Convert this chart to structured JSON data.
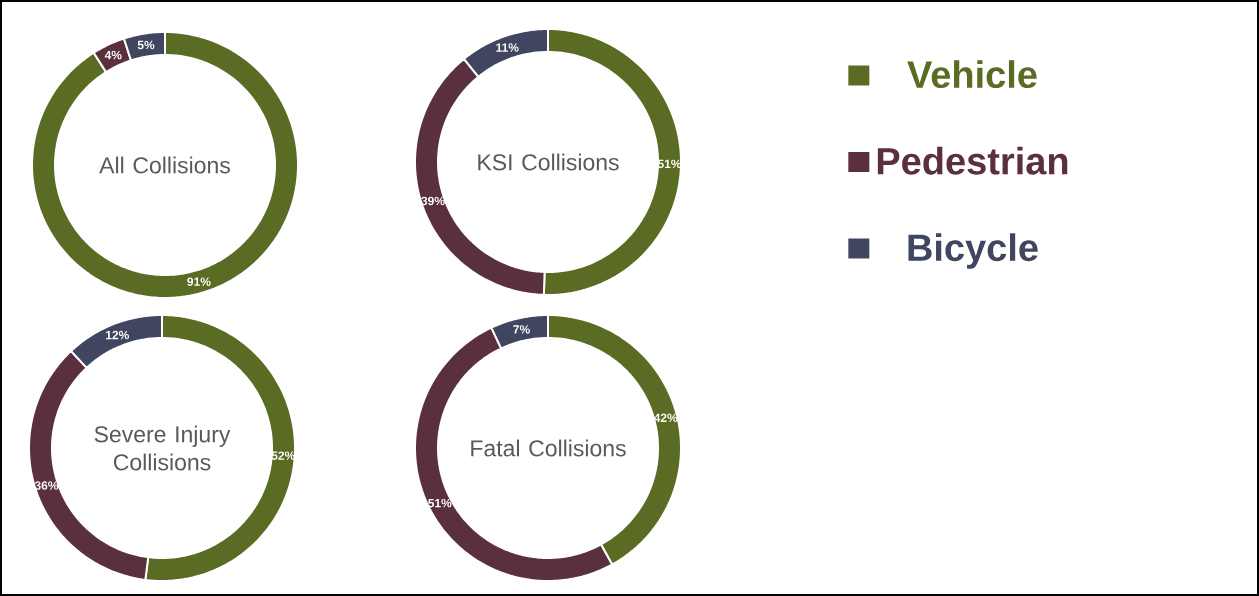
{
  "chart_data": [
    {
      "type": "donut",
      "title": "All Collisions",
      "categories": [
        null,
        null,
        null
      ],
      "values": [
        91,
        4,
        5
      ],
      "colors": [
        "#5a6b24",
        "#5a2f3e",
        "#414660"
      ],
      "value_labels": [
        "91%",
        "4%",
        "5%"
      ]
    },
    {
      "type": "donut",
      "title": "KSI Collisions",
      "categories": [
        "Vehicle",
        "Pedestrian",
        "Bicycle"
      ],
      "values": [
        51,
        39,
        11
      ],
      "colors": [
        "#5a6b24",
        "#5a2f3e",
        "#414660"
      ],
      "value_labels": [
        "51%",
        "39%",
        "11%"
      ],
      "legend": "right"
    },
    {
      "type": "donut",
      "title": "Severe Injury Collisions",
      "categories": [
        null,
        null,
        null
      ],
      "values": [
        52,
        36,
        12
      ],
      "colors": [
        "#5a6b24",
        "#5a2f3e",
        "#414660"
      ],
      "value_labels": [
        "52%",
        "36%",
        "12%"
      ]
    },
    {
      "type": "donut",
      "title": "Fatal Collisions",
      "categories": [
        null,
        null,
        null
      ],
      "values": [
        42,
        51,
        7
      ],
      "colors": [
        "#5a6b24",
        "#5a2f3e",
        "#414660"
      ],
      "value_labels": [
        "42%",
        "51%",
        "7%"
      ]
    }
  ]
}
